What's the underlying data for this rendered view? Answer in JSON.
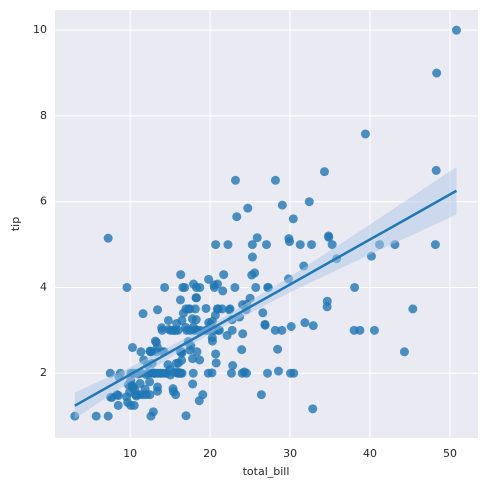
{
  "chart_data": {
    "type": "scatter",
    "xlabel": "total_bill",
    "ylabel": "tip",
    "color": "#1f77b4",
    "band_color": "#aec7e8",
    "background": "#eaeaf2",
    "grid": true,
    "xlim": [
      0.6,
      53.5
    ],
    "ylim": [
      0.49,
      10.47
    ],
    "xticks": [
      10,
      20,
      30,
      40,
      50
    ],
    "yticks": [
      2,
      4,
      6,
      8,
      10
    ],
    "x": [
      16.99,
      10.34,
      21.01,
      23.68,
      24.59,
      25.29,
      8.77,
      26.88,
      15.04,
      14.78,
      10.27,
      35.26,
      15.42,
      18.43,
      14.83,
      21.58,
      10.33,
      16.29,
      16.97,
      20.65,
      17.92,
      20.29,
      15.77,
      39.42,
      19.82,
      17.81,
      13.37,
      12.69,
      21.7,
      19.65,
      9.55,
      18.35,
      15.06,
      20.69,
      17.78,
      24.06,
      16.31,
      16.93,
      18.69,
      31.27,
      16.04,
      17.46,
      13.94,
      9.68,
      30.4,
      18.29,
      22.23,
      32.4,
      28.55,
      18.04,
      12.54,
      10.29,
      34.81,
      9.94,
      25.56,
      19.49,
      38.01,
      26.41,
      11.24,
      48.27,
      20.29,
      13.81,
      11.02,
      18.29,
      17.59,
      20.08,
      16.45,
      3.07,
      20.23,
      15.01,
      12.02,
      17.07,
      26.86,
      25.28,
      14.73,
      10.51,
      17.92,
      27.2,
      22.76,
      17.29,
      19.44,
      16.66,
      10.07,
      32.68,
      15.98,
      34.83,
      13.03,
      18.28,
      24.71,
      21.16,
      28.97,
      22.49,
      5.75,
      16.32,
      22.75,
      40.17,
      27.28,
      12.03,
      21.01,
      12.46,
      11.35,
      15.38,
      44.3,
      22.42,
      20.92,
      15.36,
      20.49,
      25.21,
      18.24,
      14.31,
      14.0,
      7.25,
      38.07,
      23.95,
      25.71,
      17.31,
      29.93,
      10.65,
      12.43,
      24.08,
      11.69,
      13.42,
      14.26,
      15.95,
      12.48,
      29.8,
      8.52,
      14.52,
      11.38,
      22.82,
      19.08,
      20.27,
      11.17,
      12.26,
      18.26,
      8.51,
      10.33,
      14.15,
      16.0,
      13.16,
      17.47,
      34.3,
      41.19,
      27.05,
      16.43,
      8.35,
      18.64,
      11.87,
      9.78,
      7.51,
      14.07,
      13.13,
      17.26,
      24.55,
      19.77,
      29.85,
      48.17,
      25.0,
      13.39,
      16.49,
      21.5,
      12.66,
      16.21,
      13.81,
      17.51,
      24.52,
      20.76,
      31.71,
      10.59,
      10.63,
      50.81,
      15.81,
      7.25,
      31.85,
      16.82,
      32.9,
      17.89,
      14.48,
      9.6,
      34.63,
      34.65,
      23.33,
      45.35,
      23.17,
      40.55,
      20.69,
      20.9,
      30.46,
      18.15,
      23.1,
      15.69,
      19.81,
      28.44,
      15.48,
      16.58,
      7.56,
      10.34,
      43.11,
      13.0,
      13.51,
      18.71,
      12.74,
      13.0,
      16.4,
      20.53,
      16.47,
      26.59,
      38.73,
      24.27,
      12.76,
      30.06,
      25.89,
      48.33,
      13.27,
      28.17,
      12.9,
      28.15,
      11.59,
      7.74,
      30.14,
      12.16,
      13.42,
      8.58,
      15.98,
      13.42,
      16.27,
      10.09,
      20.45,
      13.28,
      22.12,
      24.01,
      15.69,
      11.61,
      10.77,
      15.53,
      10.07,
      12.6,
      32.83,
      35.83,
      29.03,
      27.18,
      22.67,
      17.82,
      18.78
    ],
    "values": [
      1.01,
      1.66,
      3.5,
      3.31,
      3.61,
      4.71,
      2.0,
      3.12,
      1.96,
      3.23,
      1.71,
      5.0,
      1.57,
      3.0,
      3.02,
      3.92,
      1.67,
      3.71,
      3.5,
      3.35,
      4.08,
      2.75,
      2.23,
      7.58,
      3.18,
      2.34,
      2.0,
      2.0,
      4.3,
      3.0,
      1.45,
      2.5,
      3.0,
      2.45,
      3.27,
      3.6,
      2.0,
      3.07,
      2.31,
      5.0,
      2.24,
      2.54,
      3.06,
      1.32,
      5.6,
      3.0,
      5.0,
      6.0,
      2.05,
      3.0,
      2.5,
      2.6,
      5.2,
      1.56,
      4.34,
      3.51,
      3.0,
      1.5,
      1.76,
      6.73,
      3.21,
      2.0,
      1.98,
      3.76,
      2.64,
      3.15,
      2.47,
      1.0,
      2.01,
      2.09,
      1.97,
      3.0,
      3.14,
      5.0,
      2.2,
      1.25,
      3.08,
      4.0,
      3.0,
      2.71,
      3.0,
      3.4,
      1.83,
      5.0,
      2.03,
      5.17,
      2.0,
      4.0,
      5.85,
      3.0,
      3.0,
      3.5,
      1.0,
      4.3,
      3.25,
      4.73,
      4.0,
      1.5,
      3.0,
      1.5,
      2.5,
      3.0,
      2.5,
      3.48,
      4.08,
      1.64,
      4.06,
      4.29,
      3.76,
      4.0,
      3.0,
      1.0,
      4.0,
      2.55,
      4.0,
      3.5,
      5.07,
      1.5,
      1.8,
      2.92,
      2.31,
      1.68,
      2.5,
      2.0,
      2.52,
      4.2,
      1.48,
      2.0,
      2.0,
      2.18,
      1.5,
      2.83,
      1.5,
      2.0,
      3.25,
      1.25,
      2.0,
      2.0,
      2.0,
      2.75,
      3.5,
      6.7,
      5.0,
      5.0,
      2.3,
      1.5,
      1.36,
      1.63,
      1.73,
      2.0,
      2.5,
      2.0,
      2.74,
      2.0,
      2.0,
      5.14,
      5.0,
      3.75,
      2.61,
      2.0,
      3.5,
      2.5,
      2.0,
      2.0,
      3.0,
      3.48,
      2.24,
      4.5,
      1.61,
      2.0,
      10.0,
      3.16,
      5.15,
      3.18,
      4.0,
      3.11,
      2.0,
      2.0,
      4.0,
      3.55,
      3.68,
      5.65,
      3.5,
      6.5,
      3.0,
      5.0,
      3.5,
      2.0,
      3.5,
      4.0,
      1.5,
      4.19,
      2.56,
      2.02,
      4.0,
      1.44,
      2.0,
      5.0,
      2.0,
      2.0,
      4.0,
      2.01,
      2.0,
      2.5,
      4.0,
      3.23,
      3.41,
      3.0,
      2.03,
      2.23,
      2.0,
      5.16,
      9.0,
      2.5,
      6.5,
      1.1,
      3.0,
      1.5,
      1.44,
      3.09,
      2.2,
      3.48,
      1.92,
      3.0,
      1.58,
      2.5,
      2.0,
      3.0,
      2.72,
      2.88,
      2.0,
      3.0,
      3.39,
      1.47,
      3.0,
      1.25,
      1.0,
      1.17,
      4.67,
      5.92,
      2.0,
      2.0,
      1.75,
      3.0
    ],
    "regression": {
      "x": [
        3.07,
        50.81
      ],
      "values": [
        1.243,
        6.255
      ]
    },
    "ci_band": {
      "x": [
        3.07,
        10,
        20,
        30,
        40,
        50.81
      ],
      "lower": [
        0.94,
        1.8,
        2.92,
        3.89,
        4.77,
        5.7
      ],
      "upper": [
        1.55,
        2.14,
        3.12,
        4.25,
        5.47,
        6.81
      ]
    }
  }
}
